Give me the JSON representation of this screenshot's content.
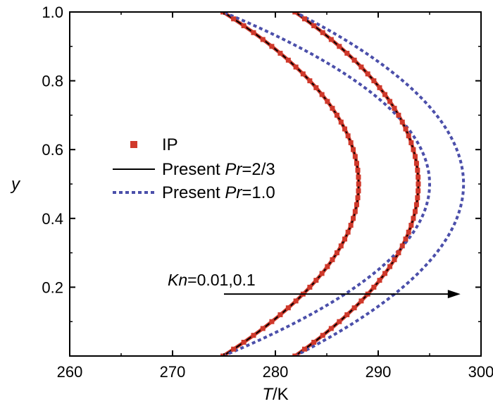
{
  "chart_data": {
    "type": "line",
    "xlabel_italic": "T",
    "xlabel_rest": "/K",
    "ylabel": "y",
    "xlim": [
      260,
      300
    ],
    "ylim": [
      0,
      1.0
    ],
    "x_ticks": [
      260,
      270,
      280,
      290,
      300
    ],
    "y_ticks": [
      0.2,
      0.4,
      0.6,
      0.8,
      1.0
    ],
    "x_tick_labels": [
      "260",
      "270",
      "280",
      "290",
      "300"
    ],
    "y_tick_labels": [
      "0.2",
      "0.4",
      "0.6",
      "0.8",
      "1.0"
    ],
    "legend": {
      "placement": "center-left",
      "entries": [
        {
          "name": "IP",
          "style": "square-markers",
          "color": "#d0392b",
          "label_parts": [
            "IP"
          ]
        },
        {
          "name": "Present Pr=2/3",
          "style": "solid",
          "color": "#000000",
          "label_parts": [
            "Present ",
            "Pr",
            "=2/3"
          ]
        },
        {
          "name": "Present Pr=1.0",
          "style": "dotted",
          "color": "#4b4faa",
          "label_parts": [
            "Present ",
            "Pr",
            "=1.0"
          ]
        }
      ]
    },
    "annotation": {
      "text_italic": "Kn",
      "text_rest": "=0.01,0.1",
      "arrow_from": [
        275.0,
        0.18
      ],
      "arrow_to": [
        298.0,
        0.18
      ]
    },
    "series": [
      {
        "name": "IP",
        "Kn": 0.01,
        "kind": "markers",
        "color": "#d0392b",
        "wall_T": 274.9,
        "center_T": 288.1
      },
      {
        "name": "IP",
        "Kn": 0.1,
        "kind": "markers",
        "color": "#d0392b",
        "wall_T": 281.9,
        "center_T": 293.9
      },
      {
        "name": "Present Pr=2/3",
        "Kn": 0.01,
        "kind": "solid",
        "color": "#000000",
        "wall_T": 274.9,
        "center_T": 288.1
      },
      {
        "name": "Present Pr=2/3",
        "Kn": 0.1,
        "kind": "solid",
        "color": "#000000",
        "wall_T": 281.9,
        "center_T": 293.9
      },
      {
        "name": "Present Pr=1.0",
        "Kn": 0.01,
        "kind": "dotted",
        "color": "#4b4faa",
        "wall_T": 274.9,
        "center_T": 295.0
      },
      {
        "name": "Present Pr=1.0",
        "Kn": 0.1,
        "kind": "dotted",
        "color": "#4b4faa",
        "wall_T": 281.9,
        "center_T": 298.3
      }
    ],
    "red_outline_color": "#d0392b"
  }
}
